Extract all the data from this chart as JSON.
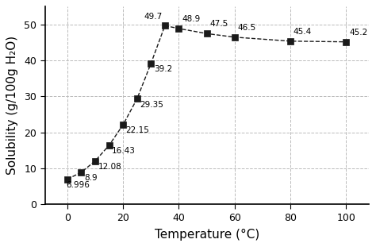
{
  "temperatures": [
    0,
    5,
    10,
    15,
    20,
    25,
    30,
    35,
    40,
    50,
    60,
    80,
    100
  ],
  "solubility": [
    6.996,
    8.9,
    12.08,
    16.43,
    22.15,
    29.35,
    39.2,
    49.7,
    48.9,
    47.5,
    46.5,
    45.4,
    45.2
  ],
  "labels": [
    "6.996",
    "8.9",
    "12.08",
    "16.43",
    "22.15",
    "29.35",
    "39.2",
    "49.7",
    "48.9",
    "47.5",
    "46.5",
    "45.4",
    "45.2"
  ],
  "label_offsets_x": [
    -0.5,
    1.0,
    1.0,
    1.0,
    1.0,
    1.0,
    1.0,
    -1.0,
    1.0,
    1.0,
    1.0,
    1.0,
    1.0
  ],
  "label_offsets_y": [
    -0.5,
    -0.5,
    -0.5,
    -0.5,
    -0.5,
    -0.5,
    -0.5,
    1.5,
    1.5,
    1.5,
    1.5,
    1.5,
    1.5
  ],
  "label_ha": [
    "left",
    "left",
    "left",
    "left",
    "left",
    "left",
    "left",
    "right",
    "left",
    "left",
    "left",
    "left",
    "left"
  ],
  "label_va": [
    "top",
    "top",
    "top",
    "top",
    "top",
    "top",
    "top",
    "bottom",
    "bottom",
    "bottom",
    "bottom",
    "bottom",
    "bottom"
  ],
  "xlabel": "Temperature (°C)",
  "ylabel": "Solubility (g/100g H₂O)",
  "xlim": [
    -8,
    108
  ],
  "ylim": [
    0,
    55
  ],
  "xticks": [
    0,
    20,
    40,
    60,
    80,
    100
  ],
  "yticks": [
    0,
    10,
    20,
    30,
    40,
    50
  ],
  "line_color": "#1a1a1a",
  "marker_color": "#1a1a1a",
  "grid_color": "#bbbbbb",
  "background_color": "#ffffff",
  "label_fontsize": 7.5,
  "axis_label_fontsize": 11,
  "tick_fontsize": 9,
  "marker_size": 6,
  "line_width": 1.0
}
